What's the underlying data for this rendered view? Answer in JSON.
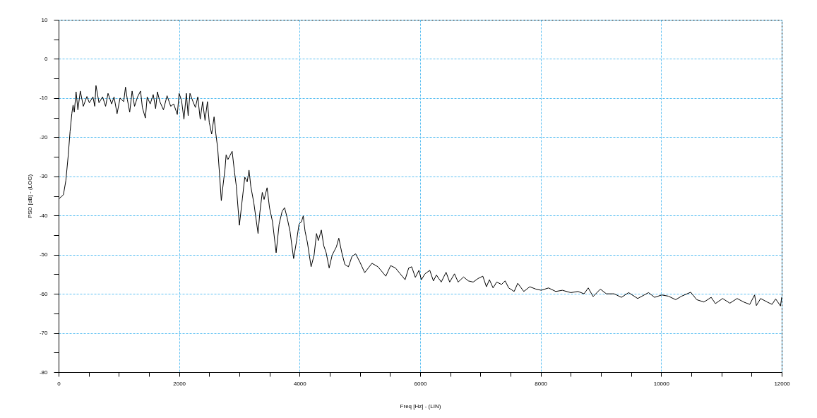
{
  "chart_data": {
    "type": "line",
    "xlabel": "Freq [Hz] - (LIN)",
    "ylabel": "PSD [dB] - (LOG)",
    "x": [
      0,
      80,
      120,
      160,
      190,
      220,
      240,
      260,
      290,
      320,
      360,
      410,
      470,
      510,
      570,
      600,
      620,
      670,
      730,
      780,
      820,
      880,
      920,
      970,
      1020,
      1080,
      1110,
      1140,
      1180,
      1220,
      1260,
      1310,
      1360,
      1390,
      1440,
      1470,
      1520,
      1570,
      1610,
      1640,
      1680,
      1740,
      1800,
      1860,
      1910,
      1970,
      2000,
      2040,
      2080,
      2120,
      2150,
      2180,
      2230,
      2270,
      2310,
      2350,
      2390,
      2430,
      2470,
      2500,
      2540,
      2580,
      2610,
      2640,
      2670,
      2700,
      2740,
      2760,
      2780,
      2810,
      2840,
      2880,
      2920,
      2950,
      3000,
      3050,
      3090,
      3130,
      3160,
      3190,
      3240,
      3310,
      3340,
      3380,
      3410,
      3460,
      3500,
      3550,
      3610,
      3660,
      3710,
      3750,
      3790,
      3840,
      3900,
      3950,
      3990,
      4030,
      4060,
      4090,
      4130,
      4190,
      4240,
      4280,
      4310,
      4360,
      4400,
      4440,
      4490,
      4540,
      4580,
      4610,
      4650,
      4700,
      4750,
      4810,
      4870,
      4930,
      5000,
      5080,
      5200,
      5300,
      5430,
      5510,
      5590,
      5670,
      5750,
      5810,
      5860,
      5920,
      5980,
      6020,
      6080,
      6160,
      6220,
      6270,
      6350,
      6430,
      6490,
      6570,
      6630,
      6720,
      6800,
      6880,
      6960,
      7040,
      7100,
      7150,
      7210,
      7270,
      7350,
      7410,
      7470,
      7560,
      7620,
      7720,
      7820,
      7920,
      8010,
      8130,
      8250,
      8360,
      8500,
      8620,
      8720,
      8790,
      8870,
      8990,
      9090,
      9220,
      9340,
      9460,
      9610,
      9790,
      9890,
      10010,
      10120,
      10240,
      10340,
      10490,
      10590,
      10710,
      10830,
      10900,
      11020,
      11140,
      11260,
      11370,
      11470,
      11550,
      11580,
      11650,
      11760,
      11840,
      11900,
      11980,
      12000
    ],
    "series": [
      {
        "color": "#000000",
        "values": [
          -35.8,
          -34.7,
          -31.1,
          -24.6,
          -18.6,
          -13.9,
          -11.8,
          -13.6,
          -8.4,
          -13.0,
          -8.2,
          -12.1,
          -9.6,
          -11.2,
          -9.7,
          -12.1,
          -6.8,
          -11.2,
          -9.7,
          -12.1,
          -8.8,
          -11.5,
          -9.7,
          -14.0,
          -10.0,
          -10.9,
          -7.2,
          -10.3,
          -13.6,
          -8.2,
          -12.1,
          -9.7,
          -8.2,
          -12.4,
          -15.1,
          -9.7,
          -11.5,
          -9.1,
          -12.7,
          -8.4,
          -10.9,
          -13.0,
          -9.4,
          -12.1,
          -11.5,
          -14.2,
          -8.8,
          -10.6,
          -15.4,
          -8.8,
          -14.5,
          -8.8,
          -10.9,
          -12.4,
          -9.7,
          -15.4,
          -10.9,
          -15.7,
          -10.9,
          -16.2,
          -19.2,
          -14.8,
          -19.2,
          -22.8,
          -29.3,
          -36.2,
          -30.8,
          -28.4,
          -24.5,
          -25.7,
          -24.8,
          -23.6,
          -29.0,
          -32.6,
          -42.5,
          -35.6,
          -30.2,
          -31.4,
          -28.4,
          -32.6,
          -36.8,
          -44.6,
          -39.2,
          -34.1,
          -35.9,
          -32.9,
          -38.0,
          -41.6,
          -49.5,
          -42.2,
          -38.9,
          -38.0,
          -40.4,
          -44.0,
          -51.0,
          -46.4,
          -42.2,
          -41.6,
          -40.1,
          -44.0,
          -47.0,
          -53.1,
          -50.1,
          -44.6,
          -46.4,
          -43.7,
          -47.7,
          -49.5,
          -53.4,
          -50.1,
          -48.9,
          -48.0,
          -45.8,
          -49.5,
          -52.5,
          -53.1,
          -50.4,
          -49.8,
          -51.9,
          -54.6,
          -52.2,
          -53.1,
          -55.5,
          -52.8,
          -53.4,
          -54.9,
          -56.4,
          -53.4,
          -53.1,
          -55.8,
          -54.0,
          -56.4,
          -54.9,
          -54.0,
          -56.7,
          -55.2,
          -57.0,
          -54.5,
          -57.0,
          -54.9,
          -57.0,
          -55.7,
          -56.7,
          -57.0,
          -56.1,
          -55.5,
          -58.2,
          -56.4,
          -58.5,
          -57.0,
          -57.6,
          -56.7,
          -58.5,
          -59.4,
          -57.3,
          -59.4,
          -58.2,
          -58.8,
          -59.1,
          -58.5,
          -59.4,
          -59.1,
          -59.7,
          -59.4,
          -60.0,
          -58.5,
          -60.7,
          -58.8,
          -60.0,
          -60.0,
          -60.9,
          -59.7,
          -61.2,
          -59.7,
          -60.9,
          -60.3,
          -60.6,
          -61.5,
          -60.6,
          -59.6,
          -61.5,
          -62.1,
          -60.9,
          -62.5,
          -61.2,
          -62.4,
          -61.2,
          -62.1,
          -62.7,
          -60.3,
          -63.0,
          -61.2,
          -62.1,
          -62.7,
          -61.3,
          -63.1,
          -60.9
        ]
      }
    ],
    "xlim": [
      0,
      12000
    ],
    "xticks": [
      0,
      {
        "value": 500,
        "label": null
      },
      {
        "value": 1000,
        "label": null
      },
      {
        "value": 1500,
        "label": null
      },
      2000,
      {
        "value": 2500,
        "label": null
      },
      {
        "value": 3000,
        "label": null
      },
      {
        "value": 3500,
        "label": null
      },
      4000,
      {
        "value": 4500,
        "label": null
      },
      {
        "value": 5000,
        "label": null
      },
      {
        "value": 5500,
        "label": null
      },
      6000,
      {
        "value": 6500,
        "label": null
      },
      {
        "value": 7000,
        "label": null
      },
      {
        "value": 7500,
        "label": null
      },
      8000,
      {
        "value": 8500,
        "label": null
      },
      {
        "value": 9000,
        "label": null
      },
      {
        "value": 9500,
        "label": null
      },
      10000,
      {
        "value": 10500,
        "label": null
      },
      {
        "value": 11000,
        "label": null
      },
      {
        "value": 11500,
        "label": null
      },
      12000
    ],
    "ylim": [
      -80,
      10
    ],
    "yticks": [
      -80,
      {
        "value": -75,
        "label": null
      },
      -70,
      {
        "value": -65,
        "label": null
      },
      -60,
      {
        "value": -55,
        "label": null
      },
      -50,
      {
        "value": -45,
        "label": null
      },
      -40,
      {
        "value": -35,
        "label": null
      },
      -30,
      {
        "value": -25,
        "label": null
      },
      -20,
      {
        "value": -15,
        "label": null
      },
      -10,
      {
        "value": -5,
        "label": null
      },
      0,
      {
        "value": 5,
        "label": null
      },
      10
    ],
    "grid": true
  }
}
